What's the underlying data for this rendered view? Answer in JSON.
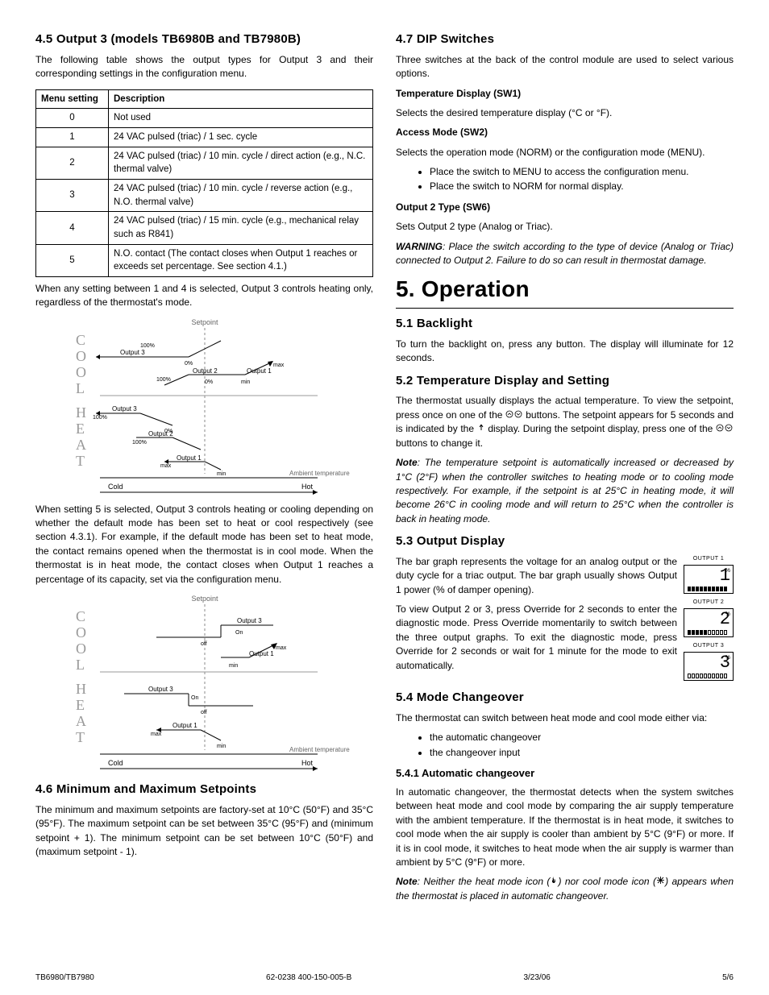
{
  "left": {
    "s45": {
      "heading": "4.5   Output 3 (models TB6980B and TB7980B)",
      "intro": "The following table shows the output types for Output 3 and their corresponding settings in the configuration menu.",
      "table": {
        "headers": [
          "Menu setting",
          "Description"
        ],
        "rows": [
          [
            "0",
            "Not used"
          ],
          [
            "1",
            "24 VAC pulsed (triac) / 1 sec. cycle"
          ],
          [
            "2",
            "24 VAC pulsed (triac) / 10 min. cycle / direct action (e.g., N.C. thermal valve)"
          ],
          [
            "3",
            "24 VAC pulsed (triac) / 10 min. cycle / reverse action (e.g., N.O. thermal valve)"
          ],
          [
            "4",
            "24 VAC pulsed (triac) / 15 min. cycle (e.g., mechanical relay such as R841)"
          ],
          [
            "5",
            "N.O. contact (The contact closes when Output 1 reaches or exceeds set percentage. See section 4.1.)"
          ]
        ]
      },
      "after_table": "When any setting between 1 and 4 is selected, Output 3 controls heating only, regardless of the thermostat's mode.",
      "after_diag1": "When setting 5 is selected, Output 3 controls heating or cooling depending on whether the default mode has been set to heat or cool respectively (see section 4.3.1). For example, if the default mode has been set to heat mode, the contact remains opened when the thermostat is in cool mode. When the thermostat is in heat mode, the contact closes when Output 1 reaches a percentage of its capacity, set via the configuration menu."
    },
    "diag": {
      "title": "Setpoint",
      "left_word_top": "COOL",
      "left_word_bot": "HEAT",
      "xaxis_left": "Cold",
      "xaxis_right": "Hot",
      "xaxis_label": "Ambient temperature",
      "labels": {
        "output1": "Output 1",
        "output2": "Output 2",
        "output3": "Output 3",
        "max": "max",
        "min": "min",
        "pct100": "100%",
        "pct0": "0%",
        "on": "On",
        "off": "off"
      }
    },
    "s46": {
      "heading": "4.6   Minimum and Maximum Setpoints",
      "body": "The minimum and maximum setpoints are factory-set at 10°C (50°F) and 35°C (95°F). The maximum setpoint can be set between 35°C (95°F) and (minimum setpoint + 1). The minimum setpoint can be set between 10°C (50°F) and (maximum setpoint - 1)."
    }
  },
  "right": {
    "s47": {
      "heading": "4.7   DIP Switches",
      "intro": "Three switches at the back of the control module are used to select various options.",
      "sw1_h": "Temperature Display (SW1)",
      "sw1_b": "Selects the desired temperature display (°C or °F).",
      "sw2_h": "Access Mode (SW2)",
      "sw2_b": "Selects the operation mode (NORM) or the configuration mode (MENU).",
      "sw2_li1": "Place the switch to MENU to access the configuration menu.",
      "sw2_li2": "Place the switch to NORM for normal display.",
      "sw6_h": "Output 2 Type (SW6)",
      "sw6_b": "Sets Output 2 type (Analog or Triac).",
      "warn_label": "WARNING",
      "warn_body": ": Place the switch according to the type of device (Analog or Triac) connected to Output 2. Failure to do so can result in thermostat damage."
    },
    "s5_title": "5.   Operation",
    "s51": {
      "heading": "5.1   Backlight",
      "body": "To turn the backlight on, press any button. The display will illuminate for 12 seconds."
    },
    "s52": {
      "heading": "5.2   Temperature Display and Setting",
      "p1a": "The thermostat usually displays the actual temperature. To view the setpoint, press once on one of the ",
      "p1b": " buttons. The setpoint appears for 5 seconds and is indicated by the ",
      "p1c": " display. During the setpoint display, press one of the ",
      "p1d": " buttons to change it.",
      "note_label": "Note",
      "note_body": ": The temperature setpoint is automatically increased or decreased by 1°C (2°F) when the controller switches to heating mode or to cooling mode respectively. For example, if the setpoint is at 25°C in heating mode, it will become 26°C in cooling mode and will return to 25°C when the controller is back in heating mode."
    },
    "s53": {
      "heading": "5.3   Output Display",
      "p1": "The bar graph represents the voltage for an analog output or the duty cycle for a triac output. The bar graph usually shows Output 1 power (% of damper opening).",
      "p2": "To view Output 2 or 3, press Override for 2 seconds to enter the diagnostic mode. Press Override momentarily to switch between the three output graphs. To exit the diagnostic mode, press Override for 2 seconds or wait for 1 minute for the mode to exit automatically.",
      "displays": [
        {
          "label": "OUTPUT 1",
          "num": "1",
          "filled": 10
        },
        {
          "label": "OUTPUT 2",
          "num": "2",
          "filled": 5
        },
        {
          "label": "OUTPUT 3",
          "num": "3",
          "filled": 0
        }
      ]
    },
    "s54": {
      "heading": "5.4   Mode Changeover",
      "intro": "The thermostat can switch between heat mode and cool mode either via:",
      "li1": "the automatic changeover",
      "li2": "the changeover input",
      "sub_h": "5.4.1   Automatic changeover",
      "sub_b": "In automatic changeover, the thermostat detects when the system switches between heat mode and cool mode by comparing the air supply temperature with the ambient temperature. If the thermostat is in heat mode, it switches to cool mode when the air supply is cooler than ambient by 5°C (9°F) or more. If it is in cool mode, it switches to heat mode when the air supply is warmer than ambient by 5°C (9°F) or more.",
      "note_label": "Note",
      "note_a": ": Neither the heat mode icon (",
      "note_b": ") nor cool mode icon (",
      "note_c": ") appears when the thermostat is placed in automatic changeover."
    }
  },
  "footer": {
    "left": "TB6980/TB7980",
    "mid": "62-0238    400-150-005-B",
    "date": "3/23/06",
    "page": "5/6"
  }
}
